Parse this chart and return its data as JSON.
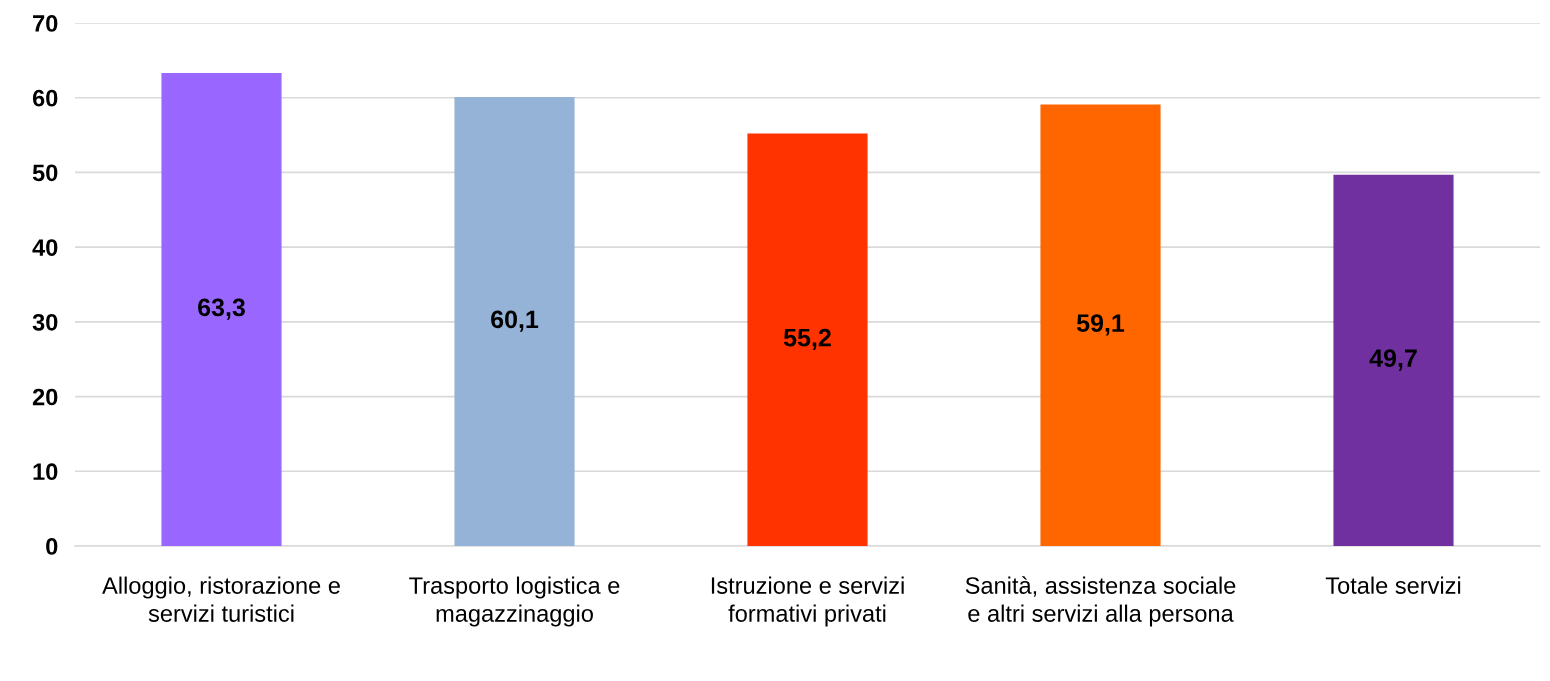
{
  "chart_data": {
    "type": "bar",
    "categories": [
      "Alloggio, ristorazione e servizi turistici",
      "Trasporto logistica e magazzinaggio",
      "Istruzione e servizi formativi privati",
      "Sanità, assistenza sociale e altri servizi alla persona",
      "Totale servizi"
    ],
    "values": [
      63.3,
      60.1,
      55.2,
      59.1,
      49.7
    ],
    "colors": [
      "#9966ff",
      "#95b3d7",
      "#ff3300",
      "#ff6600",
      "#7030a0"
    ],
    "value_labels": [
      "63,3",
      "60,1",
      "55,2",
      "59,1",
      "49,7"
    ],
    "ylim": [
      0,
      70
    ],
    "yticks": [
      0,
      10,
      20,
      30,
      40,
      50,
      60,
      70
    ],
    "grid": "y"
  }
}
